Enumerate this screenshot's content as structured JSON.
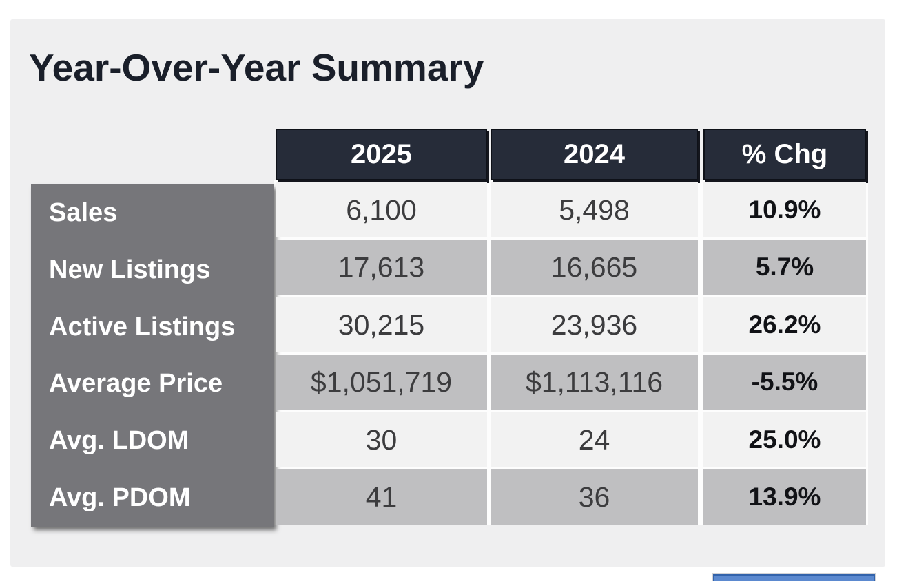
{
  "title": "Year-Over-Year Summary",
  "chart_data": {
    "type": "table",
    "title": "Year-Over-Year Summary",
    "columns": [
      "2025",
      "2024",
      "% Chg"
    ],
    "row_labels": [
      "Sales",
      "New Listings",
      "Active Listings",
      "Average Price",
      "Avg. LDOM",
      "Avg. PDOM"
    ],
    "rows": [
      [
        "6,100",
        "5,498",
        "10.9%"
      ],
      [
        "17,613",
        "16,665",
        "5.7%"
      ],
      [
        "30,215",
        "23,936",
        "26.2%"
      ],
      [
        "$1,051,719",
        "$1,113,116",
        "-5.5%"
      ],
      [
        "30",
        "24",
        "25.0%"
      ],
      [
        "41",
        "36",
        "13.9%"
      ]
    ],
    "numeric": {
      "sales": {
        "y2025": 6100,
        "y2024": 5498,
        "pct_chg": 10.9
      },
      "new_listings": {
        "y2025": 17613,
        "y2024": 16665,
        "pct_chg": 5.7
      },
      "active_listings": {
        "y2025": 30215,
        "y2024": 23936,
        "pct_chg": 26.2
      },
      "average_price": {
        "y2025": 1051719,
        "y2024": 1113116,
        "pct_chg": -5.5
      },
      "avg_ldom": {
        "y2025": 30,
        "y2024": 24,
        "pct_chg": 25.0
      },
      "avg_pdom": {
        "y2025": 41,
        "y2024": 36,
        "pct_chg": 13.9
      }
    },
    "layout_hints": {
      "row_striping": "alternating light/gray starting light",
      "pct_chg_column_bold": true,
      "header_position": "top, over value columns only"
    }
  },
  "colors": {
    "panel_background": "#efeff0",
    "header_background": "#262c39",
    "header_text": "#ffffff",
    "row_label_background": "#76767a",
    "row_label_text": "#ffffff",
    "row_light": "#f2f2f2",
    "row_gray": "#bfbfc1",
    "title_text": "#1a1f2a",
    "value_text": "#3c3c3e",
    "cropped_blue_element": "#5b89cf"
  }
}
